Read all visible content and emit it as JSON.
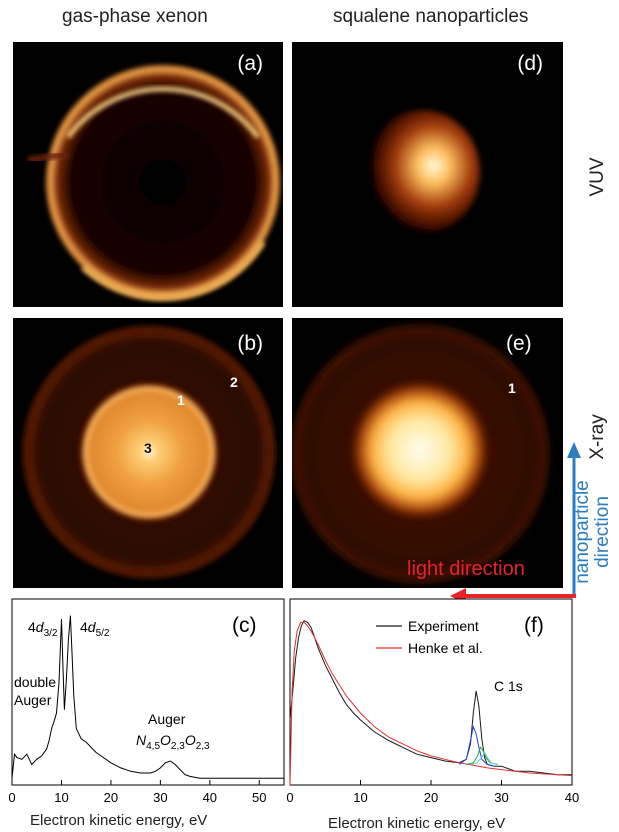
{
  "column_titles": {
    "left": "gas-phase xenon",
    "right": "squalene nanoparticles"
  },
  "row_labels": {
    "top": "VUV",
    "middle": "X-ray"
  },
  "panels": {
    "a": {
      "label": "(a)"
    },
    "b": {
      "label": "(b)",
      "rings": [
        "1",
        "2",
        "3"
      ]
    },
    "d": {
      "label": "(d)"
    },
    "e": {
      "label": "(e)",
      "rings": [
        "1"
      ]
    },
    "c": {
      "label": "(c)"
    },
    "f": {
      "label": "(f)"
    }
  },
  "arrows": {
    "light_direction": "light direction",
    "nanoparticle_direction_line1": "nanoparticle",
    "nanoparticle_direction_line2": "direction",
    "light_color": "#e8222a",
    "nanoparticle_color": "#2a7dc0"
  },
  "image_colors": {
    "background": "#000000",
    "glow": "#ffb04a",
    "core": "#fffbe0",
    "outer": "#5a1c05"
  },
  "chart_data": [
    {
      "panel": "(c)",
      "type": "line",
      "xlabel": "Electron kinetic energy, eV",
      "xlim": [
        0,
        55
      ],
      "x_ticks": [
        "0",
        "10",
        "20",
        "30",
        "40",
        "50"
      ],
      "x_tick_values": [
        0,
        10,
        20,
        30,
        40,
        50
      ],
      "annotations": {
        "peak1_base": "4",
        "peak1_italic": "d",
        "peak1_sub": "3/2",
        "peak2_base": "4",
        "peak2_italic": "d",
        "peak2_sub": "5/2",
        "double_auger_line1": "double",
        "double_auger_line2": "Auger",
        "auger_line1": "Auger",
        "auger_n": "N",
        "auger_n_sub": "4,5",
        "auger_o1": "O",
        "auger_o1_sub": "2,3",
        "auger_o2": "O",
        "auger_o2_sub": "2,3"
      },
      "series": [
        {
          "color": "#000000",
          "x": [
            0,
            0.5,
            1,
            2,
            3,
            4,
            5,
            6,
            7,
            7.5,
            8,
            8.5,
            9,
            9.5,
            10,
            10.3,
            10.6,
            11,
            11.4,
            11.8,
            12.1,
            12.5,
            13,
            14,
            15,
            16,
            17,
            18,
            20,
            22,
            24,
            26,
            28,
            29,
            30,
            31,
            32,
            33,
            34,
            35,
            36,
            38,
            40,
            45,
            50,
            55
          ],
          "y": [
            0.04,
            0.18,
            0.16,
            0.15,
            0.18,
            0.12,
            0.15,
            0.17,
            0.21,
            0.26,
            0.33,
            0.37,
            0.42,
            0.6,
            0.97,
            0.7,
            0.44,
            0.62,
            0.85,
            0.99,
            0.8,
            0.52,
            0.33,
            0.27,
            0.25,
            0.22,
            0.19,
            0.17,
            0.13,
            0.1,
            0.08,
            0.07,
            0.07,
            0.08,
            0.1,
            0.13,
            0.14,
            0.12,
            0.09,
            0.06,
            0.05,
            0.04,
            0.04,
            0.04,
            0.04,
            0.04
          ]
        }
      ]
    },
    {
      "panel": "(f)",
      "type": "line",
      "xlabel": "Electron kinetic energy, eV",
      "xlim": [
        0,
        40
      ],
      "x_ticks": [
        "0",
        "10",
        "20",
        "30",
        "40"
      ],
      "x_tick_values": [
        0,
        10,
        20,
        30,
        40
      ],
      "peak_label": "C 1s",
      "legend": [
        {
          "name": "Experiment",
          "color": "#1a1a1a"
        },
        {
          "name": "Henke et al.",
          "color": "#e03030"
        }
      ],
      "series": [
        {
          "name": "Experiment",
          "color": "#1a1a1a",
          "x": [
            0,
            0.4,
            0.8,
            1.2,
            1.6,
            2,
            2.5,
            3,
            3.5,
            4,
            5,
            6,
            7,
            8,
            9,
            10,
            12,
            14,
            16,
            18,
            20,
            22,
            24,
            25,
            25.6,
            26,
            26.4,
            26.8,
            27.2,
            27.6,
            28,
            29,
            30,
            32,
            34,
            36,
            38,
            40
          ],
          "y": [
            0.38,
            0.55,
            0.74,
            0.86,
            0.93,
            0.96,
            0.95,
            0.92,
            0.86,
            0.8,
            0.7,
            0.62,
            0.54,
            0.47,
            0.42,
            0.38,
            0.31,
            0.26,
            0.22,
            0.18,
            0.16,
            0.14,
            0.13,
            0.15,
            0.24,
            0.42,
            0.55,
            0.46,
            0.27,
            0.16,
            0.12,
            0.11,
            0.11,
            0.08,
            0.08,
            0.07,
            0.06,
            0.06
          ]
        },
        {
          "name": "Henke et al.",
          "color": "#e03030",
          "x": [
            0,
            0.3,
            0.6,
            1,
            1.5,
            2,
            2.5,
            3,
            4,
            5,
            6,
            8,
            10,
            12,
            14,
            16,
            18,
            20,
            22,
            24,
            26,
            28,
            30,
            32,
            34,
            36,
            38,
            40
          ],
          "y": [
            0.0,
            0.55,
            0.78,
            0.9,
            0.95,
            0.95,
            0.93,
            0.9,
            0.82,
            0.73,
            0.65,
            0.52,
            0.42,
            0.34,
            0.28,
            0.24,
            0.2,
            0.17,
            0.15,
            0.13,
            0.115,
            0.1,
            0.09,
            0.08,
            0.07,
            0.065,
            0.06,
            0.055
          ]
        },
        {
          "name": "",
          "color": "#2244dd",
          "x": [
            24,
            25,
            25.6,
            26,
            26.4,
            26.8,
            27.2,
            28,
            29
          ],
          "y": [
            0.12,
            0.15,
            0.26,
            0.34,
            0.3,
            0.22,
            0.15,
            0.12,
            0.11
          ]
        },
        {
          "name": "",
          "color": "#22aa44",
          "x": [
            25,
            26,
            26.6,
            27,
            27.4,
            27.8,
            28.4,
            29.5
          ],
          "y": [
            0.12,
            0.13,
            0.17,
            0.22,
            0.2,
            0.16,
            0.13,
            0.12
          ]
        },
        {
          "name": "",
          "color": "#66cccc",
          "x": [
            25.5,
            26.5,
            27.2,
            27.6,
            28,
            28.5,
            29.5
          ],
          "y": [
            0.12,
            0.13,
            0.16,
            0.19,
            0.16,
            0.13,
            0.12
          ]
        }
      ]
    }
  ]
}
